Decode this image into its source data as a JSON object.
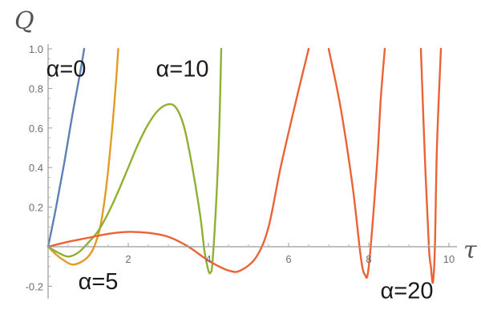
{
  "chart_data": {
    "type": "line",
    "xlabel": "τ",
    "ylabel": "Q",
    "xlim": [
      0,
      10.3
    ],
    "ylim": [
      -0.23,
      1.0
    ],
    "xticks": [
      2,
      4,
      6,
      8,
      10
    ],
    "xtick_labels": [
      "2",
      "4",
      "6",
      "8",
      "10"
    ],
    "yticks": [
      -0.2,
      0.2,
      0.4,
      0.6,
      0.8,
      1.0
    ],
    "ytick_labels": [
      "-0.2",
      "0.2",
      "0.4",
      "0.6",
      "0.8",
      "1.0"
    ],
    "grid": false,
    "legend": "none",
    "series": [
      {
        "name": "α=0",
        "color": "#5e81b5",
        "points": [
          [
            0,
            0
          ],
          [
            0.2,
            0.2
          ],
          [
            0.4,
            0.42
          ],
          [
            0.6,
            0.66
          ],
          [
            0.8,
            0.88
          ],
          [
            0.9,
            1.0
          ]
        ]
      },
      {
        "name": "α=5",
        "color": "#e19c24",
        "points": [
          [
            0,
            0
          ],
          [
            0.2,
            -0.04
          ],
          [
            0.4,
            -0.07
          ],
          [
            0.6,
            -0.09
          ],
          [
            0.8,
            -0.08
          ],
          [
            1.0,
            -0.05
          ],
          [
            1.15,
            0.0
          ],
          [
            1.3,
            0.1
          ],
          [
            1.45,
            0.3
          ],
          [
            1.6,
            0.6
          ],
          [
            1.7,
            0.85
          ],
          [
            1.75,
            1.0
          ]
        ]
      },
      {
        "name": "α=10",
        "color": "#8fb032",
        "points": [
          [
            0,
            0
          ],
          [
            0.25,
            -0.03
          ],
          [
            0.5,
            -0.05
          ],
          [
            0.75,
            -0.03
          ],
          [
            1.0,
            0.02
          ],
          [
            1.25,
            0.08
          ],
          [
            1.5,
            0.17
          ],
          [
            1.75,
            0.28
          ],
          [
            2.0,
            0.4
          ],
          [
            2.25,
            0.52
          ],
          [
            2.5,
            0.62
          ],
          [
            2.75,
            0.69
          ],
          [
            3.0,
            0.72
          ],
          [
            3.2,
            0.7
          ],
          [
            3.4,
            0.6
          ],
          [
            3.6,
            0.4
          ],
          [
            3.8,
            0.15
          ],
          [
            3.9,
            -0.02
          ],
          [
            4.0,
            -0.12
          ],
          [
            4.05,
            -0.13
          ],
          [
            4.1,
            -0.08
          ],
          [
            4.2,
            0.25
          ],
          [
            4.27,
            0.6
          ],
          [
            4.32,
            1.0
          ]
        ]
      },
      {
        "name": "α=20",
        "color": "#eb6235",
        "points": [
          [
            0,
            0
          ],
          [
            0.5,
            0.025
          ],
          [
            1.0,
            0.045
          ],
          [
            1.5,
            0.065
          ],
          [
            2.0,
            0.075
          ],
          [
            2.5,
            0.07
          ],
          [
            3.0,
            0.05
          ],
          [
            3.5,
            0.0
          ],
          [
            4.0,
            -0.07
          ],
          [
            4.5,
            -0.12
          ],
          [
            4.8,
            -0.12
          ],
          [
            5.2,
            -0.05
          ],
          [
            5.5,
            0.1
          ],
          [
            5.8,
            0.4
          ],
          [
            6.2,
            0.75
          ],
          [
            6.5,
            1.0
          ],
          null,
          [
            7.0,
            1.0
          ],
          [
            7.3,
            0.7
          ],
          [
            7.6,
            0.3
          ],
          [
            7.8,
            -0.05
          ],
          [
            7.9,
            -0.14
          ],
          [
            8.0,
            -0.1
          ],
          [
            8.2,
            0.4
          ],
          [
            8.3,
            0.75
          ],
          [
            8.4,
            1.0
          ],
          null,
          [
            9.3,
            1.0
          ],
          [
            9.4,
            0.45
          ],
          [
            9.5,
            0.0
          ],
          [
            9.55,
            -0.1
          ],
          [
            9.6,
            -0.18
          ],
          [
            9.65,
            0.0
          ],
          [
            9.7,
            0.5
          ],
          [
            9.8,
            1.0
          ]
        ]
      }
    ],
    "annotations": [
      {
        "text": "α=0",
        "x": 0.45,
        "y": 0.9
      },
      {
        "text": "α=10",
        "x": 3.35,
        "y": 0.9
      },
      {
        "text": "α=5",
        "x": 1.25,
        "y": -0.175
      },
      {
        "text": "α=20",
        "x": 8.95,
        "y": -0.22
      }
    ]
  }
}
